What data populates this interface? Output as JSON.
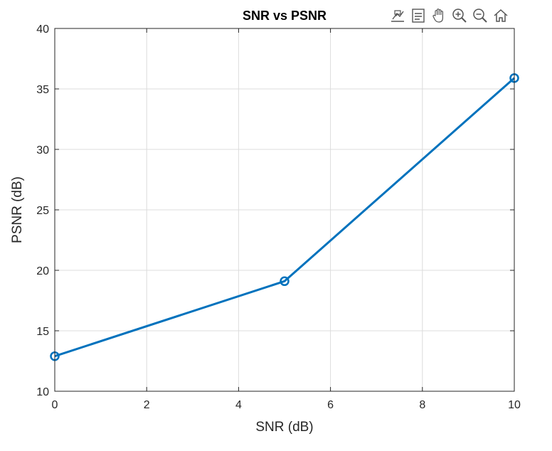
{
  "toolbar": {
    "icons": [
      "data-tips-icon",
      "legend-icon",
      "pan-hand-icon",
      "zoom-in-icon",
      "zoom-out-icon",
      "home-icon"
    ]
  },
  "colors": {
    "series": "#0072BD",
    "grid": "#DCDCDC",
    "axis": "#262626"
  },
  "chart_data": {
    "type": "line",
    "title": "SNR vs PSNR",
    "xlabel": "SNR (dB)",
    "ylabel": "PSNR (dB)",
    "xlim": [
      0,
      10
    ],
    "ylim": [
      10,
      40
    ],
    "xticks": [
      0,
      2,
      4,
      6,
      8,
      10
    ],
    "yticks": [
      10,
      15,
      20,
      25,
      30,
      35,
      40
    ],
    "grid": true,
    "marker": "circle",
    "series": [
      {
        "x": [
          0,
          5,
          10
        ],
        "y": [
          12.9,
          19.1,
          35.9
        ]
      }
    ]
  }
}
